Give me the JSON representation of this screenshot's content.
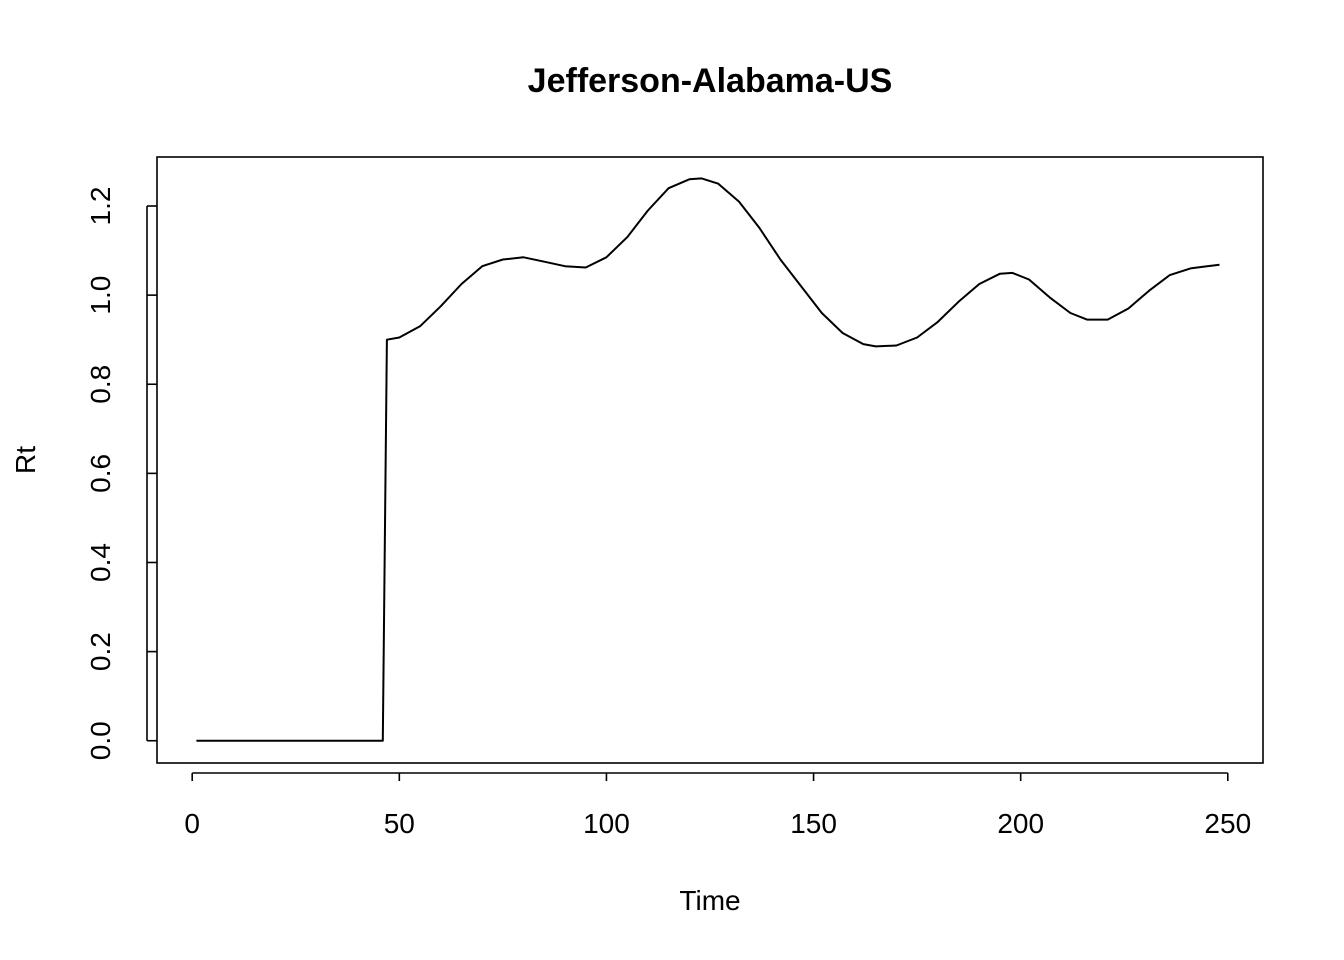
{
  "chart_data": {
    "type": "line",
    "title": "Jefferson-Alabama-US",
    "xlabel": "Time",
    "ylabel": "Rt",
    "xlim": [
      -8.5,
      258.5
    ],
    "ylim": [
      -0.05,
      1.31
    ],
    "x_ticks": [
      0,
      50,
      100,
      150,
      200,
      250
    ],
    "x_tick_labels": [
      "0",
      "50",
      "100",
      "150",
      "200",
      "250"
    ],
    "y_ticks": [
      0.0,
      0.2,
      0.4,
      0.6,
      0.8,
      1.0,
      1.2
    ],
    "y_tick_labels": [
      "0.0",
      "0.2",
      "0.4",
      "0.6",
      "0.8",
      "1.0",
      "1.2"
    ],
    "grid": false,
    "series": [
      {
        "color": "#000000",
        "points": [
          [
            1,
            0.0
          ],
          [
            20,
            0.0
          ],
          [
            46,
            0.0
          ],
          [
            47,
            0.9
          ],
          [
            50,
            0.905
          ],
          [
            55,
            0.93
          ],
          [
            60,
            0.975
          ],
          [
            65,
            1.025
          ],
          [
            70,
            1.065
          ],
          [
            75,
            1.08
          ],
          [
            80,
            1.085
          ],
          [
            85,
            1.075
          ],
          [
            90,
            1.065
          ],
          [
            95,
            1.062
          ],
          [
            100,
            1.085
          ],
          [
            105,
            1.13
          ],
          [
            110,
            1.19
          ],
          [
            115,
            1.24
          ],
          [
            120,
            1.26
          ],
          [
            123,
            1.262
          ],
          [
            127,
            1.25
          ],
          [
            132,
            1.21
          ],
          [
            137,
            1.15
          ],
          [
            142,
            1.08
          ],
          [
            147,
            1.02
          ],
          [
            152,
            0.96
          ],
          [
            157,
            0.915
          ],
          [
            162,
            0.89
          ],
          [
            165,
            0.885
          ],
          [
            170,
            0.887
          ],
          [
            175,
            0.905
          ],
          [
            180,
            0.94
          ],
          [
            185,
            0.985
          ],
          [
            190,
            1.025
          ],
          [
            195,
            1.048
          ],
          [
            198,
            1.05
          ],
          [
            202,
            1.035
          ],
          [
            207,
            0.995
          ],
          [
            212,
            0.96
          ],
          [
            216,
            0.945
          ],
          [
            221,
            0.945
          ],
          [
            226,
            0.97
          ],
          [
            231,
            1.01
          ],
          [
            236,
            1.045
          ],
          [
            241,
            1.06
          ],
          [
            245,
            1.065
          ],
          [
            248,
            1.068
          ]
        ]
      }
    ]
  }
}
